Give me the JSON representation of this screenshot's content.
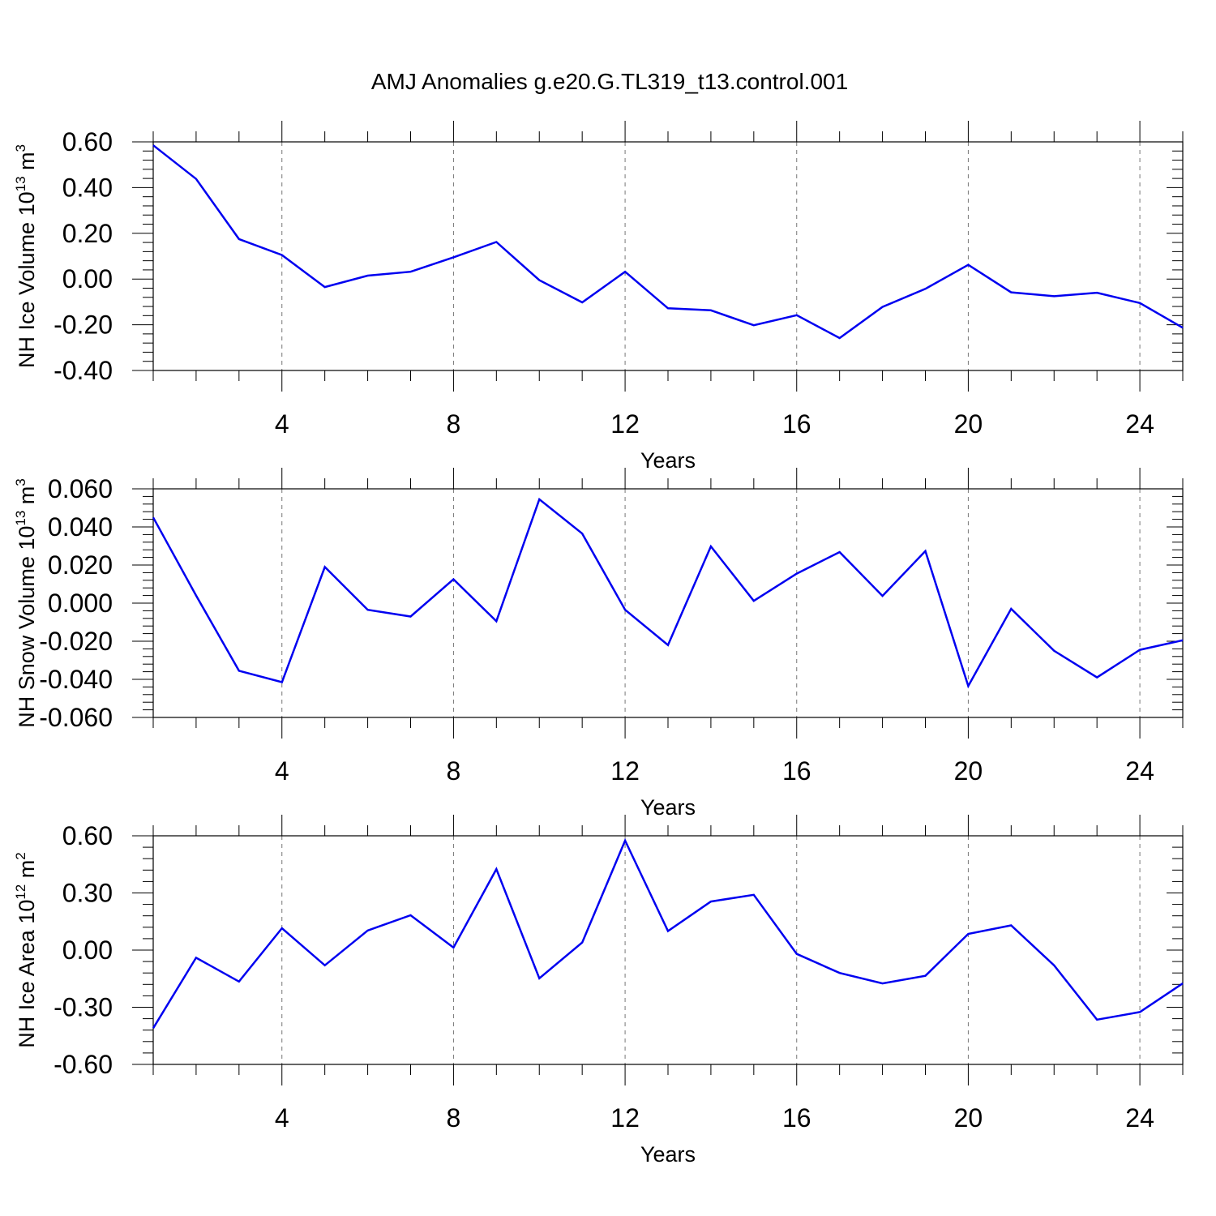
{
  "title": "AMJ Anomalies g.e20.G.TL319_t13.control.001",
  "chart_data": [
    {
      "type": "line",
      "name": "ice-volume",
      "ylabel": {
        "text": "NH Ice Volume 10",
        "sup": "13",
        "unit": " m",
        "unit_sup": "3"
      },
      "xlabel": "Years",
      "xlim": [
        1,
        25
      ],
      "ylim": [
        -0.4,
        0.6
      ],
      "x_ticks": [
        4,
        8,
        12,
        16,
        20,
        24
      ],
      "x_tick_labels": [
        "4",
        "8",
        "12",
        "16",
        "20",
        "24"
      ],
      "y_ticks": [
        -0.4,
        -0.2,
        0.0,
        0.2,
        0.4,
        0.6
      ],
      "y_tick_labels": [
        "-0.40",
        "-0.20",
        "0.00",
        "0.20",
        "0.40",
        "0.60"
      ],
      "grid": "vertical dashed at major x ticks",
      "color": "#0000f0",
      "x": [
        1,
        2,
        3,
        4,
        5,
        6,
        7,
        8,
        9,
        10,
        11,
        12,
        13,
        14,
        15,
        16,
        17,
        18,
        19,
        20,
        21,
        22,
        23,
        24,
        25
      ],
      "values": [
        0.585,
        0.438,
        0.175,
        0.105,
        -0.035,
        0.015,
        0.032,
        0.095,
        0.162,
        -0.005,
        -0.102,
        0.032,
        -0.128,
        -0.137,
        -0.202,
        -0.158,
        -0.258,
        -0.122,
        -0.043,
        0.062,
        -0.058,
        -0.075,
        -0.06,
        -0.105,
        -0.213
      ]
    },
    {
      "type": "line",
      "name": "snow-volume",
      "ylabel": {
        "text": "NH Snow Volume 10",
        "sup": "13",
        "unit": " m",
        "unit_sup": "3"
      },
      "xlabel": "Years",
      "xlim": [
        1,
        25
      ],
      "ylim": [
        -0.06,
        0.06
      ],
      "x_ticks": [
        4,
        8,
        12,
        16,
        20,
        24
      ],
      "x_tick_labels": [
        "4",
        "8",
        "12",
        "16",
        "20",
        "24"
      ],
      "y_ticks": [
        -0.06,
        -0.04,
        -0.02,
        0.0,
        0.02,
        0.04,
        0.06
      ],
      "y_tick_labels": [
        "-0.060",
        "-0.040",
        "-0.020",
        "0.000",
        "0.020",
        "0.040",
        "0.060"
      ],
      "grid": "vertical dashed at major x ticks",
      "color": "#0000f0",
      "x": [
        1,
        2,
        3,
        4,
        5,
        6,
        7,
        8,
        9,
        10,
        11,
        12,
        13,
        14,
        15,
        16,
        17,
        18,
        19,
        20,
        21,
        22,
        23,
        24,
        25
      ],
      "values": [
        0.045,
        0.004,
        -0.0355,
        -0.0415,
        0.019,
        -0.0035,
        -0.007,
        0.0125,
        -0.0095,
        0.0545,
        0.0365,
        -0.0035,
        -0.022,
        0.0298,
        0.0012,
        0.0155,
        0.0268,
        0.0038,
        0.0273,
        -0.0435,
        -0.003,
        -0.025,
        -0.039,
        -0.0245,
        -0.0195
      ]
    },
    {
      "type": "line",
      "name": "ice-area",
      "ylabel": {
        "text": "NH Ice Area 10",
        "sup": "12",
        "unit": " m",
        "unit_sup": "2"
      },
      "xlabel": "Years",
      "xlim": [
        1,
        25
      ],
      "ylim": [
        -0.6,
        0.6
      ],
      "x_ticks": [
        4,
        8,
        12,
        16,
        20,
        24
      ],
      "x_tick_labels": [
        "4",
        "8",
        "12",
        "16",
        "20",
        "24"
      ],
      "y_ticks": [
        -0.6,
        -0.3,
        0.0,
        0.3,
        0.6
      ],
      "y_tick_labels": [
        "-0.60",
        "-0.30",
        "0.00",
        "0.30",
        "0.60"
      ],
      "grid": "vertical dashed at major x ticks",
      "color": "#0000f0",
      "x": [
        1,
        2,
        3,
        4,
        5,
        6,
        7,
        8,
        9,
        10,
        11,
        12,
        13,
        14,
        15,
        16,
        17,
        18,
        19,
        20,
        21,
        22,
        23,
        24,
        25
      ],
      "values": [
        -0.41,
        -0.04,
        -0.165,
        0.115,
        -0.08,
        0.103,
        0.183,
        0.013,
        0.425,
        -0.148,
        0.04,
        0.575,
        0.1,
        0.255,
        0.29,
        -0.02,
        -0.12,
        -0.175,
        -0.135,
        0.085,
        0.13,
        -0.08,
        -0.365,
        -0.325,
        -0.175
      ]
    }
  ]
}
